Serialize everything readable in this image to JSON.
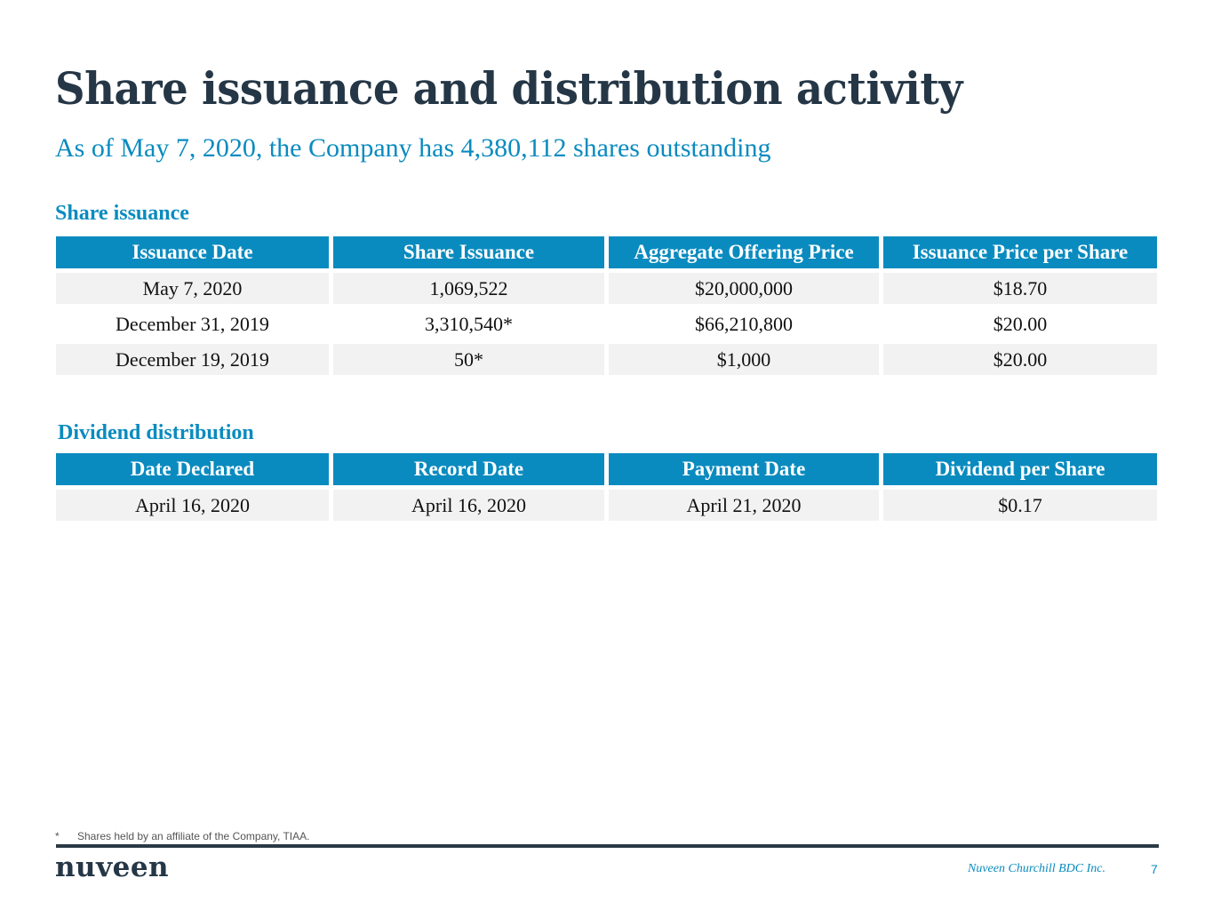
{
  "title": "Share issuance and distribution activity",
  "subtitle": "As of May 7, 2020, the Company has 4,380,112 shares outstanding",
  "share_issuance": {
    "heading": "Share issuance",
    "columns": [
      "Issuance Date",
      "Share Issuance",
      "Aggregate Offering Price",
      "Issuance Price per Share"
    ],
    "rows": [
      [
        "May 7, 2020",
        "1,069,522",
        "$20,000,000",
        "$18.70"
      ],
      [
        "December 31, 2019",
        "3,310,540*",
        "$66,210,800",
        "$20.00"
      ],
      [
        "December 19, 2019",
        "50*",
        "$1,000",
        "$20.00"
      ]
    ]
  },
  "dividend": {
    "heading": "Dividend distribution",
    "columns": [
      "Date Declared",
      "Record Date",
      "Payment Date",
      "Dividend per Share"
    ],
    "rows": [
      [
        "April 16, 2020",
        "April 16, 2020",
        "April 21, 2020",
        "$0.17"
      ]
    ]
  },
  "footnote": {
    "mark": "*",
    "text": "Shares held by an affiliate of the Company, TIAA."
  },
  "footer": {
    "logo": "nuveen",
    "company": "Nuveen Churchill BDC Inc.",
    "page": "7"
  },
  "colors": {
    "accent": "#0a8bbf",
    "title": "#253746",
    "row_shade": "#f2f2f2"
  }
}
